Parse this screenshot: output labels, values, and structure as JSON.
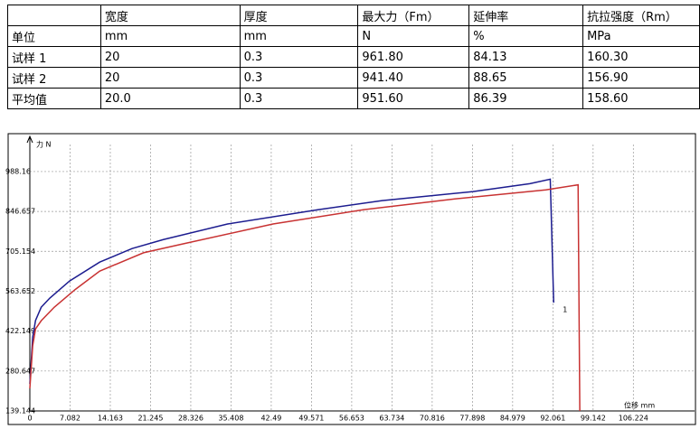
{
  "table": {
    "header": [
      null,
      "宽度",
      "厚度",
      "最大力（Fm）",
      "延伸率",
      "抗拉强度（Rm）"
    ],
    "rows": [
      [
        "单位",
        "mm",
        "mm",
        "N",
        "%",
        "MPa"
      ],
      [
        "试样 1",
        "20",
        "0.3",
        "961.80",
        "84.13",
        "160.30"
      ],
      [
        "试样 2",
        "20",
        "0.3",
        "941.40",
        "88.65",
        "156.90"
      ],
      [
        "平均值",
        "20.0",
        "0.3",
        "951.60",
        "86.39",
        "158.60"
      ]
    ]
  },
  "chart_data": {
    "type": "line",
    "y_label": "力 N",
    "x_label": "位移 mm",
    "annotation": "1",
    "xlim": [
      0,
      117
    ],
    "ylim": [
      139.144,
      1084
    ],
    "xticks": [
      0,
      7.082,
      14.163,
      21.245,
      28.326,
      35.408,
      42.49,
      49.571,
      56.653,
      63.734,
      70.816,
      77.898,
      84.979,
      92.061,
      99.142,
      106.224
    ],
    "yticks": [
      139.144,
      280.647,
      422.149,
      563.652,
      705.154,
      846.657,
      988.16
    ],
    "grid": true,
    "series": [
      {
        "color": "#1c1c8f",
        "x": [
          0,
          0.5,
          1,
          2,
          3.5,
          7,
          12.3,
          18,
          23.5,
          34.8,
          50.8,
          62,
          78,
          88,
          91.6,
          92.2
        ],
        "values": [
          235,
          400,
          460,
          507,
          539,
          600,
          667,
          715,
          747,
          802,
          853,
          885,
          917,
          945,
          961,
          523
        ]
      },
      {
        "color": "#c83232",
        "x": [
          0,
          0.5,
          1,
          2,
          4.3,
          8,
          12.3,
          20,
          26.8,
          42.8,
          58.8,
          74.8,
          90.8,
          96.5,
          96.8
        ],
        "values": [
          219,
          370,
          430,
          459,
          507,
          570,
          635,
          700,
          731,
          802,
          853,
          891,
          923,
          941,
          139.144
        ]
      }
    ]
  }
}
